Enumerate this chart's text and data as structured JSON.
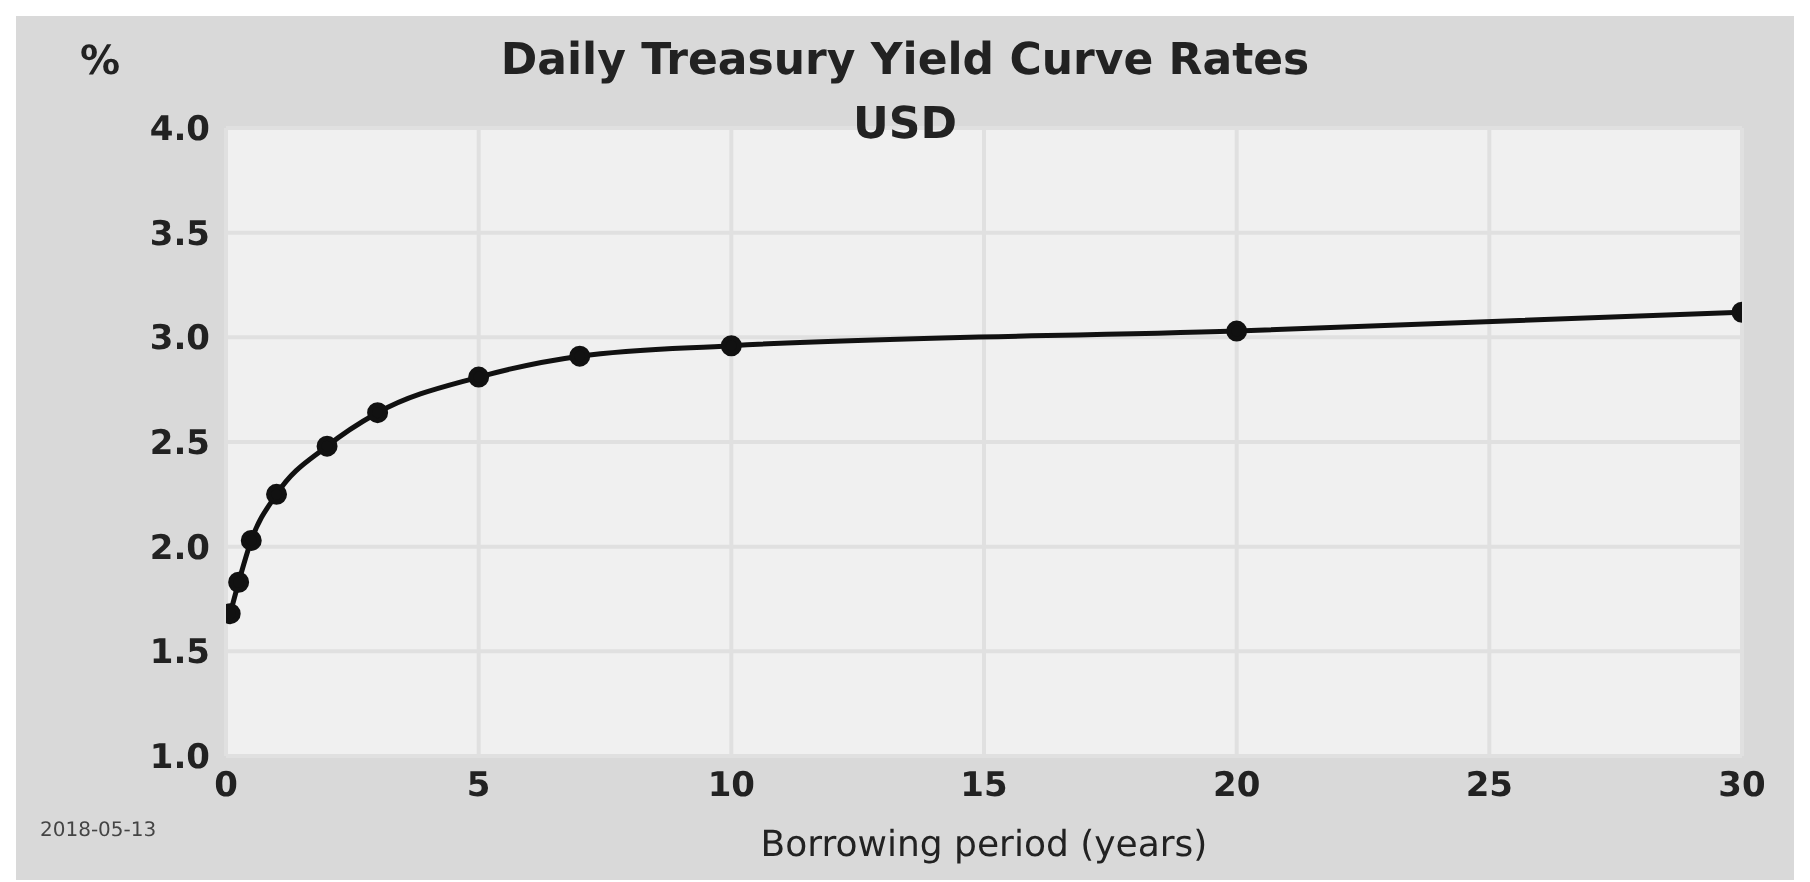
{
  "chart_data": {
    "type": "line",
    "title": "Daily Treasury Yield Curve Rates",
    "subtitle": "USD",
    "xlabel": "Borrowing period (years)",
    "ylabel": "%",
    "annotations": [
      "2018-05-13"
    ],
    "x": [
      0.083,
      0.25,
      0.5,
      1,
      2,
      3,
      5,
      7,
      10,
      20,
      30
    ],
    "series": [
      {
        "color": "#111111",
        "values": [
          1.68,
          1.83,
          2.03,
          2.25,
          2.48,
          2.64,
          2.81,
          2.91,
          2.96,
          3.03,
          3.12
        ]
      }
    ],
    "xlim": [
      0,
      30
    ],
    "xticks": [
      0,
      5,
      10,
      15,
      20,
      25,
      30
    ],
    "ylim": [
      1.0,
      4.0
    ],
    "yticks": [
      {
        "value": 1,
        "label": "1.0"
      },
      {
        "value": 1.5,
        "label": "1.5"
      },
      {
        "value": 2,
        "label": "2.0"
      },
      {
        "value": 2.5,
        "label": "2.5"
      },
      {
        "value": 3,
        "label": "3.0"
      },
      {
        "value": 3.5,
        "label": "3.5"
      },
      {
        "value": 4,
        "label": "4.0"
      }
    ],
    "grid": true,
    "legend": false,
    "marker": "circle",
    "line_style": "solid"
  }
}
